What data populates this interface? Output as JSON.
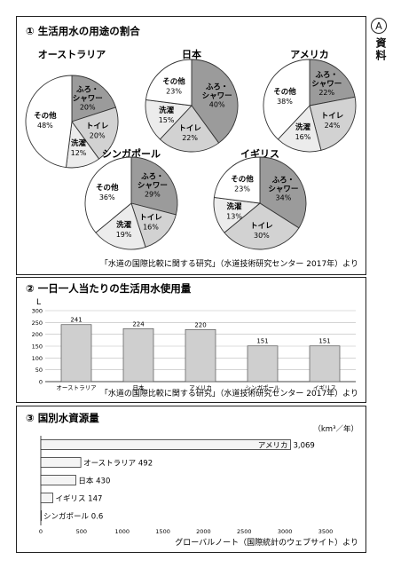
{
  "side_label": {
    "mark": "A",
    "text": "資料"
  },
  "colors": {
    "shower": "#9b9b9b",
    "toilet": "#d2d2d2",
    "laundry": "#ececec",
    "other": "#ffffff",
    "bar": "#cfcfcf"
  },
  "chart_data": [
    {
      "type": "pie",
      "title": "① 生活用水の用途の割合",
      "source": "「水道の国際比較に関する研究」（水道技術研究センター 2017年）より",
      "pies": [
        {
          "country": "オーストラリア",
          "slices": [
            {
              "label": "ふろ・シャワー",
              "value": 20,
              "pct": "20%",
              "color": "shower"
            },
            {
              "label": "トイレ",
              "value": 20,
              "pct": "20%",
              "color": "toilet"
            },
            {
              "label": "洗濯",
              "value": 12,
              "pct": "12%",
              "color": "laundry"
            },
            {
              "label": "その他",
              "value": 48,
              "pct": "48%",
              "color": "other"
            }
          ]
        },
        {
          "country": "日本",
          "slices": [
            {
              "label": "ふろ・シャワー",
              "value": 40,
              "pct": "40%",
              "color": "shower"
            },
            {
              "label": "トイレ",
              "value": 22,
              "pct": "22%",
              "color": "toilet"
            },
            {
              "label": "洗濯",
              "value": 15,
              "pct": "15%",
              "color": "laundry"
            },
            {
              "label": "その他",
              "value": 23,
              "pct": "23%",
              "color": "other"
            }
          ]
        },
        {
          "country": "アメリカ",
          "slices": [
            {
              "label": "ふろ・シャワー",
              "value": 22,
              "pct": "22%",
              "color": "shower"
            },
            {
              "label": "トイレ",
              "value": 24,
              "pct": "24%",
              "color": "toilet"
            },
            {
              "label": "洗濯",
              "value": 16,
              "pct": "16%",
              "color": "laundry"
            },
            {
              "label": "その他",
              "value": 38,
              "pct": "38%",
              "color": "other"
            }
          ]
        },
        {
          "country": "シンガポール",
          "slices": [
            {
              "label": "ふろ・シャワー",
              "value": 29,
              "pct": "29%",
              "color": "shower"
            },
            {
              "label": "トイレ",
              "value": 16,
              "pct": "16%",
              "color": "toilet"
            },
            {
              "label": "洗濯",
              "value": 19,
              "pct": "19%",
              "color": "laundry"
            },
            {
              "label": "その他",
              "value": 36,
              "pct": "36%",
              "color": "other"
            }
          ]
        },
        {
          "country": "イギリス",
          "slices": [
            {
              "label": "ふろ・シャワー",
              "value": 34,
              "pct": "34%",
              "color": "shower"
            },
            {
              "label": "トイレ",
              "value": 30,
              "pct": "30%",
              "color": "toilet"
            },
            {
              "label": "洗濯",
              "value": 13,
              "pct": "13%",
              "color": "laundry"
            },
            {
              "label": "その他",
              "value": 23,
              "pct": "23%",
              "color": "other"
            }
          ]
        }
      ]
    },
    {
      "type": "bar",
      "title": "② 一日一人当たりの生活用水使用量",
      "ylabel": "L",
      "categories": [
        "オーストラリア",
        "日本",
        "アメリカ",
        "シンガポール",
        "イギリス"
      ],
      "values": [
        241,
        224,
        220,
        151,
        151
      ],
      "ylim": [
        0,
        300
      ],
      "yticks": [
        0,
        50,
        100,
        150,
        200,
        250,
        300
      ],
      "grid": true,
      "source": "「水道の国際比較に関する研究」（水道技術研究センター 2017年）より"
    },
    {
      "type": "bar",
      "orientation": "horizontal",
      "title": "③ 国別水資源量",
      "unit": "（km³／年）",
      "categories": [
        "アメリカ",
        "オーストラリア",
        "日本",
        "イギリス",
        "シンガポール"
      ],
      "values": [
        3069,
        492,
        430,
        147,
        0.6
      ],
      "value_labels": [
        "3,069",
        "492",
        "430",
        "147",
        "0.6"
      ],
      "xlim": [
        0,
        3500
      ],
      "xticks": [
        0,
        500,
        1000,
        1500,
        2000,
        2500,
        3000,
        3500
      ],
      "source": "グローバルノート（国際統計のウェブサイト）より"
    }
  ]
}
